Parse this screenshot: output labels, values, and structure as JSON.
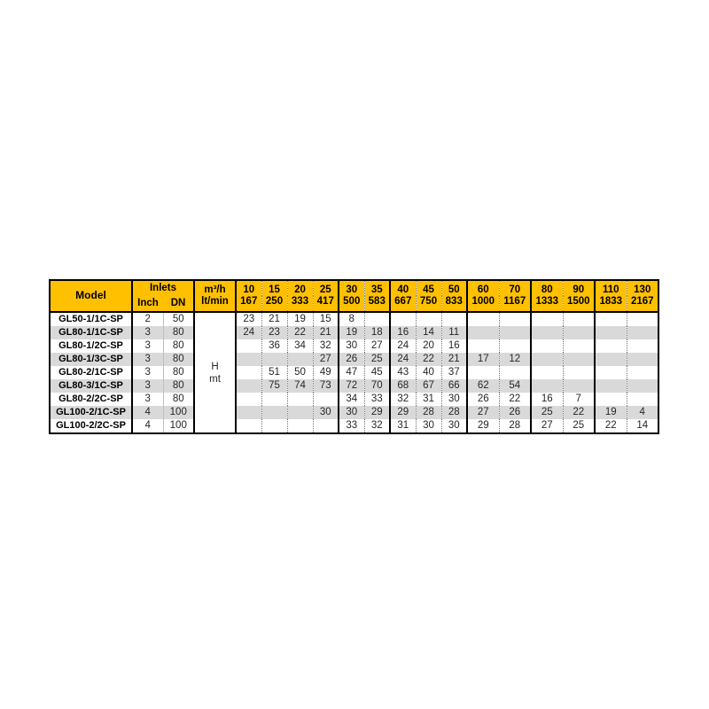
{
  "colors": {
    "header_bg": "#FFC000",
    "stripe_bg": "#D9D9D9",
    "border": "#000000",
    "page_bg": "#ffffff"
  },
  "table": {
    "header": {
      "model": "Model",
      "inlets": "Inlets",
      "inch": "Inch",
      "dn": "DN",
      "flow_m3h": "m³/h",
      "flow_ltmin": "lt/min",
      "flow_columns": [
        {
          "m3h": "10",
          "ltmin": "167",
          "group_start": false
        },
        {
          "m3h": "15",
          "ltmin": "250",
          "group_start": false
        },
        {
          "m3h": "20",
          "ltmin": "333",
          "group_start": false
        },
        {
          "m3h": "25",
          "ltmin": "417",
          "group_start": false
        },
        {
          "m3h": "30",
          "ltmin": "500",
          "group_start": true
        },
        {
          "m3h": "35",
          "ltmin": "583",
          "group_start": false
        },
        {
          "m3h": "40",
          "ltmin": "667",
          "group_start": true
        },
        {
          "m3h": "45",
          "ltmin": "750",
          "group_start": false
        },
        {
          "m3h": "50",
          "ltmin": "833",
          "group_start": false
        },
        {
          "m3h": "60",
          "ltmin": "1000",
          "group_start": true
        },
        {
          "m3h": "70",
          "ltmin": "1167",
          "group_start": false
        },
        {
          "m3h": "80",
          "ltmin": "1333",
          "group_start": true
        },
        {
          "m3h": "90",
          "ltmin": "1500",
          "group_start": false
        },
        {
          "m3h": "110",
          "ltmin": "1833",
          "group_start": true
        },
        {
          "m3h": "130",
          "ltmin": "2167",
          "group_start": false
        }
      ]
    },
    "merged_unit_cell": {
      "line1": "H",
      "line2": "mt"
    },
    "rows": [
      {
        "model": "GL50-1/1C-SP",
        "inch": "2",
        "dn": "50",
        "values": [
          "23",
          "21",
          "19",
          "15",
          "8",
          "",
          "",
          "",
          "",
          "",
          "",
          "",
          "",
          "",
          ""
        ]
      },
      {
        "model": "GL80-1/1C-SP",
        "inch": "3",
        "dn": "80",
        "values": [
          "24",
          "23",
          "22",
          "21",
          "19",
          "18",
          "16",
          "14",
          "11",
          "",
          "",
          "",
          "",
          "",
          ""
        ]
      },
      {
        "model": "GL80-1/2C-SP",
        "inch": "3",
        "dn": "80",
        "values": [
          "",
          "36",
          "34",
          "32",
          "30",
          "27",
          "24",
          "20",
          "16",
          "",
          "",
          "",
          "",
          "",
          ""
        ]
      },
      {
        "model": "GL80-1/3C-SP",
        "inch": "3",
        "dn": "80",
        "values": [
          "",
          "",
          "",
          "27",
          "26",
          "25",
          "24",
          "22",
          "21",
          "17",
          "12",
          "",
          "",
          "",
          ""
        ]
      },
      {
        "model": "GL80-2/1C-SP",
        "inch": "3",
        "dn": "80",
        "values": [
          "",
          "51",
          "50",
          "49",
          "47",
          "45",
          "43",
          "40",
          "37",
          "",
          "",
          "",
          "",
          "",
          ""
        ]
      },
      {
        "model": "GL80-3/1C-SP",
        "inch": "3",
        "dn": "80",
        "values": [
          "",
          "75",
          "74",
          "73",
          "72",
          "70",
          "68",
          "67",
          "66",
          "62",
          "54",
          "",
          "",
          "",
          ""
        ]
      },
      {
        "model": "GL80-2/2C-SP",
        "inch": "3",
        "dn": "80",
        "values": [
          "",
          "",
          "",
          "",
          "34",
          "33",
          "32",
          "31",
          "30",
          "26",
          "22",
          "16",
          "7",
          "",
          ""
        ]
      },
      {
        "model": "GL100-2/1C-SP",
        "inch": "4",
        "dn": "100",
        "values": [
          "",
          "",
          "",
          "30",
          "30",
          "29",
          "29",
          "28",
          "28",
          "27",
          "26",
          "25",
          "22",
          "19",
          "4"
        ]
      },
      {
        "model": "GL100-2/2C-SP",
        "inch": "4",
        "dn": "100",
        "values": [
          "",
          "",
          "",
          "",
          "33",
          "32",
          "31",
          "30",
          "30",
          "29",
          "28",
          "27",
          "25",
          "22",
          "14"
        ]
      }
    ]
  }
}
